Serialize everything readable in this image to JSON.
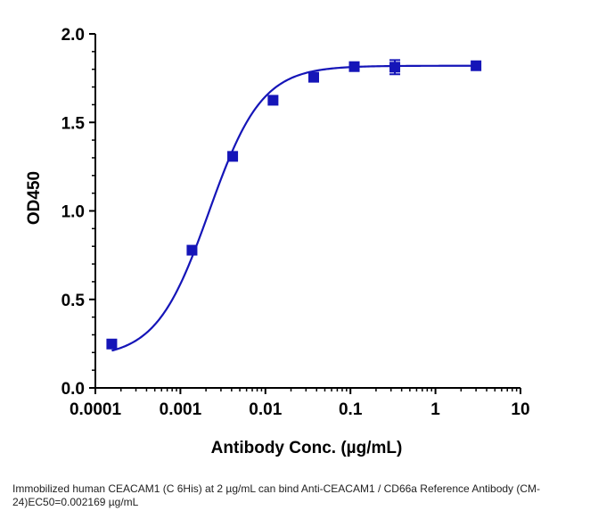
{
  "chart_data": {
    "type": "scatter",
    "title": "",
    "xlabel": "Antibody Conc. (µg/mL)",
    "ylabel": "OD450",
    "xscale": "log",
    "xlim": [
      0.0001,
      10
    ],
    "ylim": [
      0.0,
      2.0
    ],
    "x_ticks": [
      0.0001,
      0.001,
      0.01,
      0.1,
      1,
      10
    ],
    "x_tick_labels": [
      "0.0001",
      "0.001",
      "0.01",
      "0.1",
      "1",
      "10"
    ],
    "y_ticks": [
      0.0,
      0.5,
      1.0,
      1.5,
      2.0
    ],
    "y_tick_labels": [
      "0.0",
      "0.5",
      "1.0",
      "1.5",
      "2.0"
    ],
    "grid": false,
    "series": [
      {
        "color": "#1515b8",
        "marker": "square",
        "x": [
          0.000156,
          0.00137,
          0.00412,
          0.0123,
          0.037,
          0.111,
          0.333,
          3.0
        ],
        "y": [
          0.248,
          0.778,
          1.308,
          1.625,
          1.755,
          1.815,
          1.812,
          1.82
        ],
        "error": [
          0.0,
          0.0,
          0.0,
          0.0,
          0.0,
          0.0,
          0.04,
          0.0
        ]
      }
    ],
    "fit": {
      "model": "4PL",
      "bottom": 0.17,
      "top": 1.82,
      "ec50": 0.002169,
      "hill": 1.4
    }
  },
  "caption": "Immobilized human CEACAM1 (C 6His) at 2  µg/mL can bind  Anti-CEACAM1 / CD66a Reference Antibody (CM-24)EC50=0.002169 µg/mL"
}
